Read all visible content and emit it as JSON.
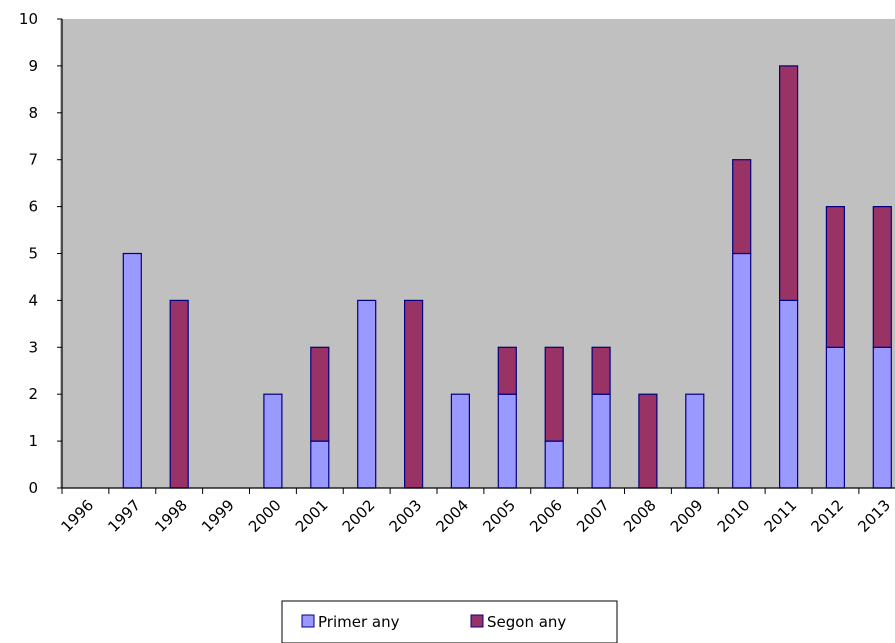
{
  "chart_data": {
    "type": "bar",
    "stacked": true,
    "categories": [
      "1996",
      "1997",
      "1998",
      "1999",
      "2000",
      "2001",
      "2002",
      "2003",
      "2004",
      "2005",
      "2006",
      "2007",
      "2008",
      "2009",
      "2010",
      "2011",
      "2012",
      "2013"
    ],
    "series": [
      {
        "name": "Primer any",
        "color": "#9999ff",
        "values": [
          0,
          5,
          0,
          0,
          2,
          1,
          4,
          0,
          2,
          2,
          1,
          2,
          0,
          2,
          5,
          4,
          3,
          3
        ]
      },
      {
        "name": "Segon any",
        "color": "#993366",
        "values": [
          0,
          0,
          4,
          0,
          0,
          2,
          0,
          4,
          0,
          1,
          2,
          1,
          2,
          0,
          2,
          5,
          3,
          3
        ]
      }
    ],
    "ylim": [
      0,
      10
    ],
    "yticks": [
      "0",
      "1",
      "2",
      "3",
      "4",
      "5",
      "6",
      "7",
      "8",
      "9",
      "10"
    ],
    "title": "",
    "xlabel": "",
    "ylabel": "",
    "plot_background": "#c0c0c0",
    "legend_position": "bottom",
    "grid": false
  }
}
